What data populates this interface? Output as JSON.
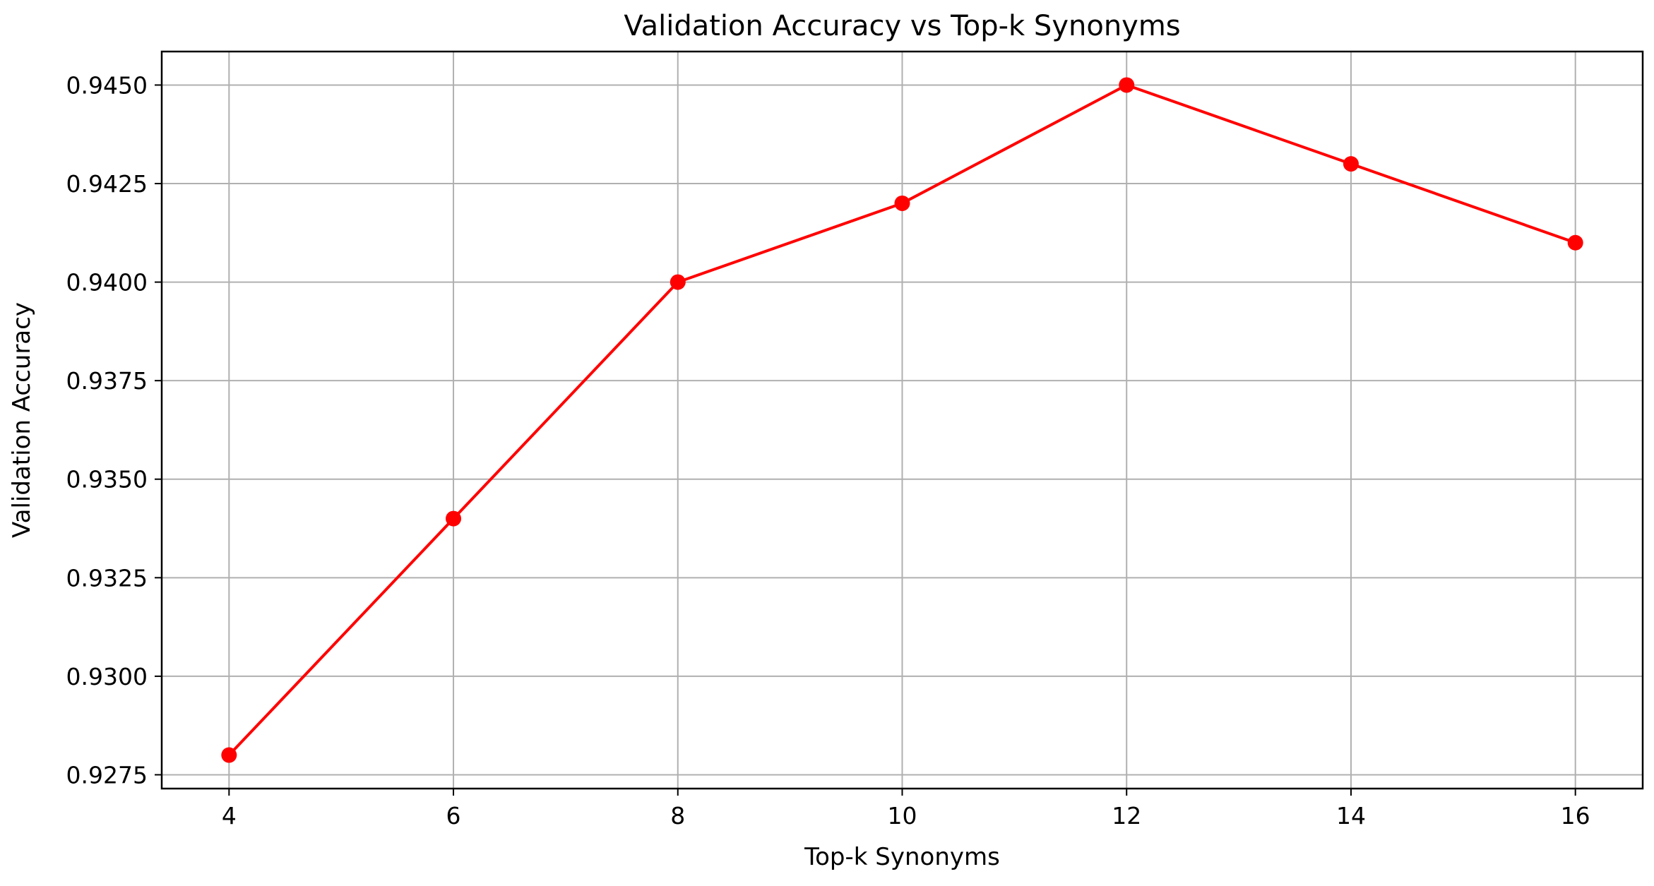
{
  "chart_data": {
    "type": "line",
    "title": "Validation Accuracy vs Top-k Synonyms",
    "xlabel": "Top-k Synonyms",
    "ylabel": "Validation Accuracy",
    "x": [
      4,
      6,
      8,
      10,
      12,
      14,
      16
    ],
    "series": [
      {
        "values": [
          0.928,
          0.934,
          0.94,
          0.942,
          0.945,
          0.943,
          0.941
        ],
        "color": "#ff0000",
        "marker": "circle"
      }
    ],
    "xticks": [
      4,
      6,
      8,
      10,
      12,
      14,
      16
    ],
    "xtick_labels": [
      "4",
      "6",
      "8",
      "10",
      "12",
      "14",
      "16"
    ],
    "yticks": [
      0.9275,
      0.93,
      0.9325,
      0.935,
      0.9375,
      0.94,
      0.9425,
      0.945
    ],
    "ytick_labels": [
      "0.9275",
      "0.9300",
      "0.9325",
      "0.9350",
      "0.9375",
      "0.9400",
      "0.9425",
      "0.9450"
    ],
    "xlim": [
      3.4,
      16.6
    ],
    "ylim": [
      0.92715,
      0.94585
    ],
    "grid": true,
    "legend": false
  }
}
